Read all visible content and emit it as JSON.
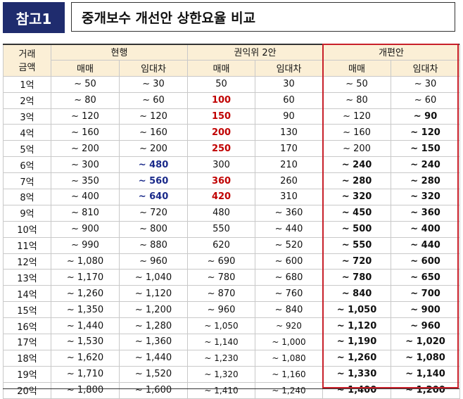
{
  "header": {
    "badge": "참고1",
    "title": "중개보수 개선안 상한요율 비교"
  },
  "columns": {
    "amount": [
      "거래",
      "금액"
    ],
    "group_current": "현행",
    "group_acrc": "권익위 2안",
    "group_reform": "개편안",
    "sale": "매매",
    "lease": "임대차"
  },
  "rows": [
    [
      "1억",
      "~ 50",
      "~ 30",
      "50",
      "30",
      "~ 50",
      "~ 30"
    ],
    [
      "2억",
      "~ 80",
      "~ 60",
      "100",
      "60",
      "~ 80",
      "~ 60"
    ],
    [
      "3억",
      "~ 120",
      "~ 120",
      "150",
      "90",
      "~ 120",
      "~ 90"
    ],
    [
      "4억",
      "~ 160",
      "~ 160",
      "200",
      "130",
      "~ 160",
      "~ 120"
    ],
    [
      "5억",
      "~ 200",
      "~ 200",
      "250",
      "170",
      "~ 200",
      "~ 150"
    ],
    [
      "6억",
      "~ 300",
      "~ 480",
      "300",
      "210",
      "~ 240",
      "~ 240"
    ],
    [
      "7억",
      "~ 350",
      "~ 560",
      "360",
      "260",
      "~ 280",
      "~ 280"
    ],
    [
      "8억",
      "~ 400",
      "~ 640",
      "420",
      "310",
      "~ 320",
      "~ 320"
    ],
    [
      "9억",
      "~ 810",
      "~ 720",
      "480",
      "~ 360",
      "~ 450",
      "~ 360"
    ],
    [
      "10억",
      "~ 900",
      "~ 800",
      "550",
      "~ 440",
      "~ 500",
      "~ 400"
    ],
    [
      "11억",
      "~ 990",
      "~ 880",
      "620",
      "~ 520",
      "~ 550",
      "~ 440"
    ],
    [
      "12억",
      "~ 1,080",
      "~ 960",
      "~ 690",
      "~ 600",
      "~ 720",
      "~ 600"
    ],
    [
      "13억",
      "~ 1,170",
      "~ 1,040",
      "~ 780",
      "~ 680",
      "~ 780",
      "~ 650"
    ],
    [
      "14억",
      "~ 1,260",
      "~ 1,120",
      "~ 870",
      "~ 760",
      "~ 840",
      "~ 700"
    ],
    [
      "15억",
      "~ 1,350",
      "~ 1,200",
      "~ 960",
      "~ 840",
      "~ 1,050",
      "~ 900"
    ],
    [
      "16억",
      "~ 1,440",
      "~ 1,280",
      "~ 1,050",
      "~ 920",
      "~ 1,120",
      "~ 960"
    ],
    [
      "17억",
      "~ 1,530",
      "~ 1,360",
      "~ 1,140",
      "~ 1,000",
      "~ 1,190",
      "~ 1,020"
    ],
    [
      "18억",
      "~ 1,620",
      "~ 1,440",
      "~ 1,230",
      "~ 1,080",
      "~ 1,260",
      "~ 1,080"
    ],
    [
      "19억",
      "~ 1,710",
      "~ 1,520",
      "~ 1,320",
      "~ 1,160",
      "~ 1,330",
      "~ 1,140"
    ],
    [
      "20억",
      "~ 1,800",
      "~ 1,600",
      "~ 1,410",
      "~ 1,240",
      "~ 1,400",
      "~ 1,200"
    ]
  ],
  "highlights": {
    "red_rows_col3": [
      1,
      2,
      3,
      4,
      6,
      7
    ],
    "blue_rows_col2": [
      5,
      6,
      7
    ],
    "bold_reform_sale_from_row": 5,
    "bold_reform_lease_from_row": 2
  },
  "colors": {
    "badge_bg": "#1f2c6e",
    "header_bg": "#fbefd6",
    "red": "#c00000",
    "blue": "#1a2a8a",
    "reform_border": "#c8202a"
  }
}
